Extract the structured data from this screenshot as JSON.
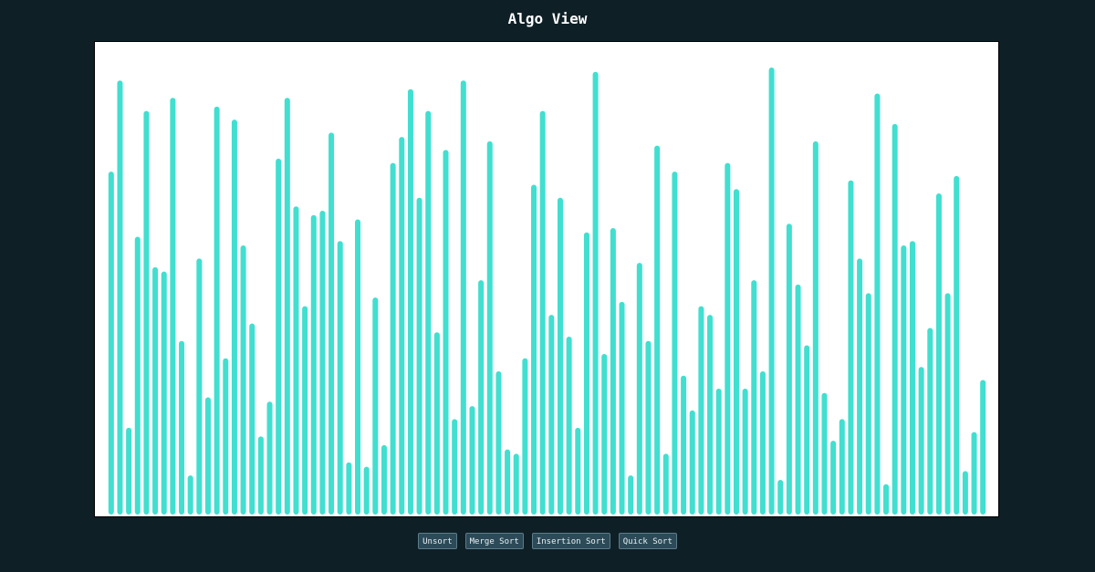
{
  "app": {
    "title": "Algo View"
  },
  "controls": {
    "unsort_label": "Unsort",
    "merge_sort_label": "Merge Sort",
    "insertion_sort_label": "Insertion Sort",
    "quick_sort_label": "Quick Sort"
  },
  "colors": {
    "background": "#0e1f26",
    "bar": "#40dfd0",
    "canvas": "#ffffff",
    "button_bg": "#2c4a58"
  },
  "chart_data": {
    "type": "bar",
    "values": [
      0.79,
      1.0,
      0.2,
      0.64,
      0.93,
      0.57,
      0.56,
      0.96,
      0.4,
      0.09,
      0.59,
      0.27,
      0.94,
      0.36,
      0.91,
      0.62,
      0.44,
      0.18,
      0.26,
      0.82,
      0.96,
      0.71,
      0.48,
      0.69,
      0.7,
      0.88,
      0.63,
      0.12,
      0.68,
      0.11,
      0.5,
      0.16,
      0.81,
      0.87,
      0.98,
      0.73,
      0.93,
      0.42,
      0.84,
      0.22,
      1.0,
      0.25,
      0.54,
      0.86,
      0.33,
      0.15,
      0.14,
      0.36,
      0.76,
      0.93,
      0.46,
      0.73,
      0.41,
      0.2,
      0.65,
      1.02,
      0.37,
      0.66,
      0.49,
      0.09,
      0.58,
      0.4,
      0.85,
      0.14,
      0.79,
      0.32,
      0.24,
      0.48,
      0.46,
      0.29,
      0.81,
      0.75,
      0.29,
      0.54,
      0.33,
      1.03,
      0.08,
      0.67,
      0.53,
      0.39,
      0.86,
      0.28,
      0.17,
      0.22,
      0.77,
      0.59,
      0.51,
      0.97,
      0.07,
      0.9,
      0.62,
      0.63,
      0.34,
      0.43,
      0.74,
      0.51,
      0.78,
      0.1,
      0.19,
      0.31
    ]
  }
}
